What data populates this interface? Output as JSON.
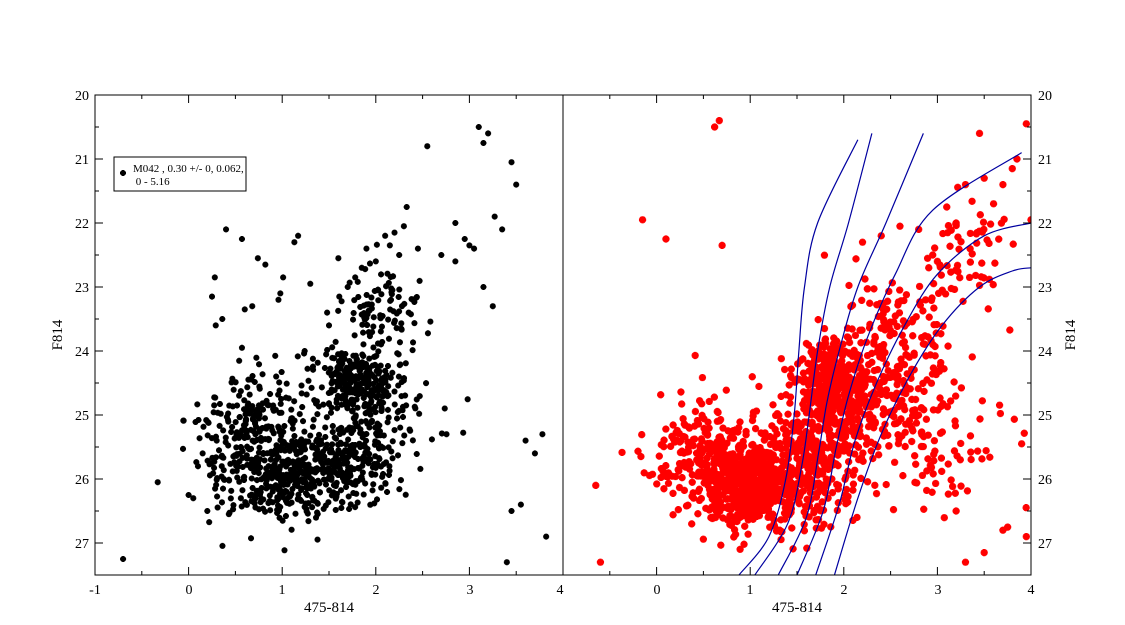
{
  "chart_data": [
    {
      "type": "scatter",
      "panel": "left",
      "xlabel": "475-814",
      "ylabel": "F814",
      "xlim": [
        -1,
        4
      ],
      "ylim": [
        27.5,
        20
      ],
      "y_inverted": true,
      "x_ticks": [
        "-1",
        "0",
        "1",
        "2",
        "3",
        "4"
      ],
      "y_ticks": [
        "20",
        "21",
        "22",
        "23",
        "24",
        "25",
        "26",
        "27"
      ],
      "grid": false,
      "legend_placement": "top-left",
      "legend": [
        "M042  , 0.30 +/- 0, 0.062,",
        " 0 - 5.16"
      ],
      "marker_color": "#000000",
      "series": [
        {
          "x": [
            -0.7,
            -0.33,
            0.4,
            0.57,
            0.74,
            0.82,
            1.17,
            1.13,
            1.3,
            0.98,
            1.01,
            1.24,
            0.28,
            0.25,
            0.36,
            0.68,
            0.6,
            0.29,
            0.57,
            0.96,
            1.48,
            1.61,
            1.7,
            1.78,
            1.85,
            1.6,
            1.5,
            1.9,
            2.0,
            2.1,
            2.2,
            2.3,
            2.15,
            2.25,
            2.33,
            2.45,
            2.55,
            2.7,
            2.85,
            3.0,
            3.1,
            3.15,
            3.2,
            3.27,
            3.35,
            3.45,
            3.5,
            2.85,
            2.95,
            3.05,
            3.15,
            3.25,
            3.6,
            3.7,
            3.78,
            3.82,
            3.55,
            3.45,
            3.4,
            0.2,
            0.0,
            0.05,
            0.1,
            0.15,
            0.3
          ],
          "y": [
            27.25,
            26.05,
            22.1,
            22.25,
            22.55,
            22.65,
            22.2,
            22.3,
            22.95,
            23.1,
            22.85,
            24.0,
            22.85,
            23.15,
            23.5,
            23.3,
            23.35,
            23.6,
            23.95,
            23.2,
            23.4,
            23.15,
            23.0,
            22.85,
            22.7,
            22.55,
            23.6,
            22.4,
            22.6,
            22.2,
            22.15,
            22.05,
            22.35,
            22.5,
            21.75,
            22.4,
            20.8,
            22.5,
            22.6,
            22.35,
            20.5,
            20.75,
            20.6,
            21.9,
            22.1,
            21.05,
            21.4,
            22.0,
            22.25,
            22.4,
            23.0,
            23.3,
            25.4,
            25.6,
            25.3,
            26.9,
            26.4,
            26.5,
            27.3,
            26.5,
            26.25,
            26.3,
            25.8,
            25.6,
            25.4
          ]
        }
      ],
      "clusters": [
        {
          "x_center": 1.8,
          "y_center": 24.45,
          "x_spread": 0.35,
          "y_spread": 0.4,
          "count": 230
        },
        {
          "x_center": 0.95,
          "y_center": 26.0,
          "x_spread": 0.55,
          "y_spread": 0.6,
          "count": 320
        },
        {
          "x_center": 1.55,
          "y_center": 25.8,
          "x_spread": 0.5,
          "y_spread": 0.55,
          "count": 250
        },
        {
          "x_center": 0.7,
          "y_center": 25.1,
          "x_spread": 0.5,
          "y_spread": 0.7,
          "count": 180
        },
        {
          "x_center": 1.9,
          "y_center": 25.0,
          "x_spread": 0.6,
          "y_spread": 0.8,
          "count": 150
        },
        {
          "x_center": 2.1,
          "y_center": 23.3,
          "x_spread": 0.35,
          "y_spread": 0.5,
          "count": 90
        }
      ]
    },
    {
      "type": "scatter",
      "panel": "right",
      "xlabel": "475-814",
      "ylabel": "F814",
      "xlim": [
        -1,
        4
      ],
      "ylim": [
        27.5,
        20
      ],
      "y_inverted": true,
      "x_ticks": [
        "0",
        "1",
        "2",
        "3",
        "4"
      ],
      "y_ticks": [
        "20",
        "21",
        "22",
        "23",
        "24",
        "25",
        "26",
        "27"
      ],
      "grid": false,
      "marker_color": "#ff0000",
      "line_color": "#0000a0",
      "series": [
        {
          "x": [
            0.62,
            0.67,
            0.1,
            -0.15,
            0.7,
            3.45,
            3.7,
            3.8,
            3.85,
            3.95,
            4.0,
            3.5,
            3.6,
            3.3,
            3.1,
            3.2,
            2.2,
            2.4,
            2.6,
            2.8,
            2.95,
            3.0,
            -0.65,
            -0.6,
            3.9,
            3.95,
            3.7,
            3.5,
            3.3,
            3.2
          ],
          "y": [
            20.5,
            20.4,
            22.25,
            21.95,
            22.35,
            20.6,
            21.4,
            21.15,
            21.0,
            20.45,
            21.95,
            21.3,
            21.7,
            21.4,
            21.75,
            22.0,
            22.3,
            22.2,
            22.05,
            22.1,
            22.5,
            22.6,
            26.1,
            27.3,
            25.45,
            26.9,
            26.8,
            27.15,
            27.3,
            26.5
          ]
        }
      ],
      "clusters": [
        {
          "x_center": 1.85,
          "y_center": 24.5,
          "x_spread": 0.3,
          "y_spread": 0.55,
          "count": 320
        },
        {
          "x_center": 1.0,
          "y_center": 26.1,
          "x_spread": 0.4,
          "y_spread": 0.55,
          "count": 520
        },
        {
          "x_center": 1.6,
          "y_center": 25.7,
          "x_spread": 0.45,
          "y_spread": 0.8,
          "count": 380
        },
        {
          "x_center": 0.5,
          "y_center": 25.6,
          "x_spread": 0.5,
          "y_spread": 0.8,
          "count": 200
        },
        {
          "x_center": 2.2,
          "y_center": 24.8,
          "x_spread": 0.6,
          "y_spread": 1.0,
          "count": 220
        },
        {
          "x_center": 2.6,
          "y_center": 23.8,
          "x_spread": 0.5,
          "y_spread": 0.9,
          "count": 120
        },
        {
          "x_center": 3.0,
          "y_center": 25.5,
          "x_spread": 0.6,
          "y_spread": 1.0,
          "count": 90
        },
        {
          "x_center": 3.3,
          "y_center": 22.5,
          "x_spread": 0.45,
          "y_spread": 0.7,
          "count": 60
        }
      ],
      "isochrones": [
        {
          "x": [
            0.88,
            1.2,
            1.38,
            1.47,
            1.52,
            1.58,
            1.72,
            2.15
          ],
          "y": [
            27.5,
            26.9,
            26.0,
            25.0,
            24.0,
            23.0,
            22.0,
            20.7
          ]
        },
        {
          "x": [
            1.05,
            1.4,
            1.55,
            1.63,
            1.72,
            1.85,
            2.05,
            2.3
          ],
          "y": [
            27.5,
            26.7,
            25.8,
            25.0,
            24.0,
            23.0,
            22.0,
            20.6
          ]
        },
        {
          "x": [
            1.3,
            1.6,
            1.73,
            1.82,
            1.95,
            2.15,
            2.45,
            2.85
          ],
          "y": [
            27.5,
            26.6,
            25.6,
            24.8,
            24.0,
            23.0,
            22.0,
            20.6
          ]
        },
        {
          "x": [
            1.5,
            1.78,
            1.92,
            2.05,
            2.25,
            2.55,
            2.95,
            3.9
          ],
          "y": [
            27.5,
            26.5,
            25.5,
            24.7,
            23.8,
            22.8,
            21.8,
            20.9
          ]
        },
        {
          "x": [
            1.7,
            1.95,
            2.12,
            2.35,
            2.65,
            3.0,
            3.5,
            4.0
          ],
          "y": [
            27.5,
            26.4,
            25.4,
            24.5,
            23.6,
            22.8,
            22.2,
            22.0
          ]
        },
        {
          "x": [
            1.9,
            2.15,
            2.4,
            2.7,
            3.05,
            3.45,
            3.8,
            4.0
          ],
          "y": [
            27.5,
            26.3,
            25.3,
            24.4,
            23.6,
            23.0,
            22.75,
            22.7
          ]
        }
      ]
    }
  ]
}
